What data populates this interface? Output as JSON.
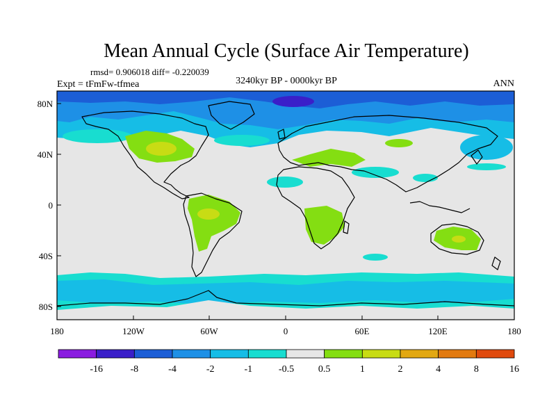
{
  "title": "Mean Annual Cycle (Surface Air Temperature)",
  "stats": "rmsd= 0.906018 diff= -0.220039",
  "experiment": "Expt = tFmFw-tfmea",
  "period": "3240kyr BP - 0000kyr BP",
  "season": "ANN",
  "lat_labels": [
    "80N",
    "40N",
    "0",
    "40S",
    "80S"
  ],
  "lon_labels": [
    "180",
    "120W",
    "60W",
    "0",
    "60E",
    "120E",
    "180"
  ],
  "colorbar": {
    "colors": [
      "#8a1ce0",
      "#3a1fc9",
      "#1c5ed6",
      "#1e90e6",
      "#16bde6",
      "#18ddd0",
      "#e6e6e6",
      "#84de12",
      "#c8dc14",
      "#e2a812",
      "#e27a10",
      "#e04a0e"
    ],
    "labels": [
      "-16",
      "-8",
      "-4",
      "-2",
      "-1",
      "-0.5",
      "0.5",
      "1",
      "2",
      "4",
      "8",
      "16"
    ]
  },
  "palette": {
    "neutral": "#e6e6e6",
    "coast": "#000000"
  }
}
